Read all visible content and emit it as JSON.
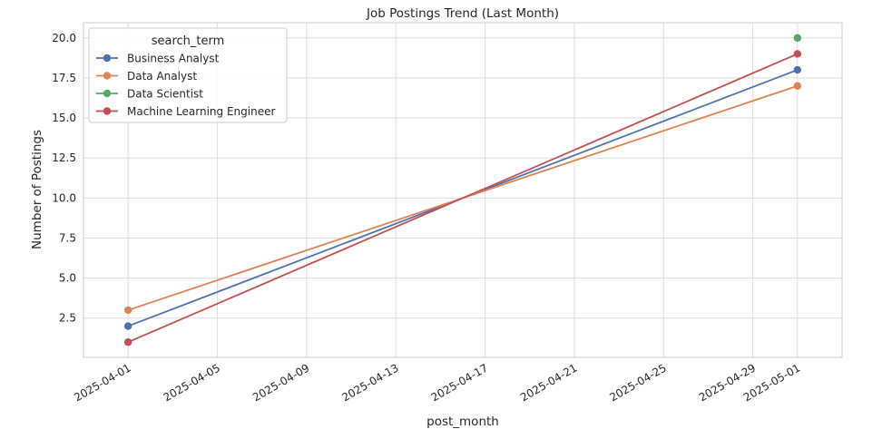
{
  "chart_data": {
    "type": "line",
    "title": "Job Postings Trend (Last Month)",
    "xlabel": "post_month",
    "ylabel": "Number of Postings",
    "x_type": "date",
    "xlim": [
      "2025-03-30",
      "2025-05-03"
    ],
    "ylim": [
      0.05,
      20.95
    ],
    "x_ticks": [
      "2025-04-01",
      "2025-04-05",
      "2025-04-09",
      "2025-04-13",
      "2025-04-17",
      "2025-04-21",
      "2025-04-25",
      "2025-04-29",
      "2025-05-01"
    ],
    "y_ticks": [
      "2.5",
      "5.0",
      "7.5",
      "10.0",
      "12.5",
      "15.0",
      "17.5",
      "20.0"
    ],
    "grid": true,
    "legend": {
      "title": "search_term",
      "placement": "top-left"
    },
    "series": [
      {
        "name": "Business Analyst",
        "color": "#4c72b0",
        "x": [
          "2025-04-01",
          "2025-05-01"
        ],
        "y": [
          2,
          18
        ]
      },
      {
        "name": "Data Analyst",
        "color": "#dd8452",
        "x": [
          "2025-04-01",
          "2025-05-01"
        ],
        "y": [
          3,
          17
        ]
      },
      {
        "name": "Data Scientist",
        "color": "#55a868",
        "x": [
          "2025-05-01"
        ],
        "y": [
          20
        ]
      },
      {
        "name": "Machine Learning Engineer",
        "color": "#c44e52",
        "x": [
          "2025-04-01",
          "2025-05-01"
        ],
        "y": [
          1,
          19
        ]
      }
    ]
  }
}
